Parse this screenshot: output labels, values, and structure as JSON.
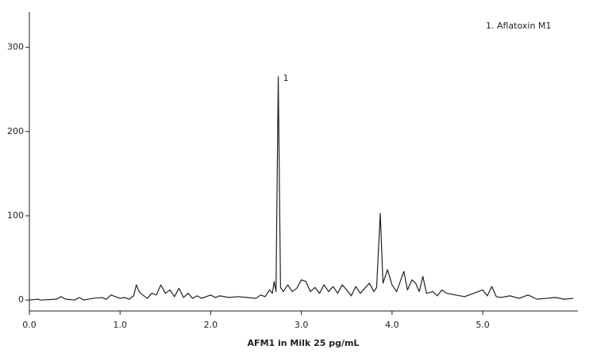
{
  "chart_data": {
    "type": "line",
    "xlabel": "AFM1 in Milk 25 pg/mL",
    "note": "1.  Aflatoxin M1",
    "annotations": [
      {
        "text": "1",
        "x": 2.745,
        "y": 265
      }
    ],
    "x": [
      0.0,
      0.1,
      0.12,
      0.3,
      0.35,
      0.4,
      0.5,
      0.55,
      0.6,
      0.7,
      0.8,
      0.85,
      0.9,
      0.95,
      1.0,
      1.05,
      1.1,
      1.15,
      1.18,
      1.21,
      1.25,
      1.3,
      1.35,
      1.4,
      1.45,
      1.5,
      1.55,
      1.6,
      1.65,
      1.7,
      1.75,
      1.8,
      1.85,
      1.9,
      2.0,
      2.05,
      2.1,
      2.2,
      2.3,
      2.4,
      2.5,
      2.55,
      2.6,
      2.65,
      2.68,
      2.7,
      2.72,
      2.745,
      2.77,
      2.8,
      2.85,
      2.9,
      2.95,
      3.0,
      3.05,
      3.1,
      3.15,
      3.2,
      3.25,
      3.3,
      3.35,
      3.4,
      3.45,
      3.5,
      3.55,
      3.6,
      3.65,
      3.7,
      3.75,
      3.8,
      3.83,
      3.87,
      3.9,
      3.95,
      4.0,
      4.05,
      4.1,
      4.13,
      4.17,
      4.22,
      4.26,
      4.3,
      4.34,
      4.38,
      4.45,
      4.5,
      4.55,
      4.6,
      4.7,
      4.8,
      4.9,
      5.0,
      5.05,
      5.1,
      5.15,
      5.2,
      5.3,
      5.4,
      5.5,
      5.6,
      5.7,
      5.8,
      5.9,
      6.0
    ],
    "series": [
      {
        "color": "#231f20",
        "values": [
          0,
          1,
          0,
          1,
          4,
          1,
          0,
          3,
          0,
          2,
          3,
          1,
          6,
          4,
          2,
          3,
          1,
          5,
          18,
          10,
          6,
          2,
          8,
          6,
          18,
          8,
          12,
          4,
          14,
          3,
          8,
          2,
          5,
          2,
          6,
          3,
          5,
          3,
          4,
          3,
          2,
          6,
          4,
          12,
          8,
          22,
          10,
          265,
          15,
          10,
          18,
          10,
          14,
          24,
          22,
          10,
          15,
          8,
          18,
          10,
          16,
          8,
          18,
          12,
          5,
          16,
          8,
          14,
          20,
          10,
          15,
          103,
          20,
          36,
          18,
          10,
          25,
          34,
          12,
          24,
          20,
          10,
          28,
          8,
          10,
          5,
          12,
          8,
          6,
          4,
          8,
          12,
          5,
          16,
          4,
          3,
          5,
          2,
          6,
          1,
          2,
          3,
          1,
          2
        ]
      }
    ],
    "xlim": [
      0,
      6.05
    ],
    "ylim": [
      -13,
      342
    ],
    "xticks": [
      {
        "value": 0,
        "label": "0.0"
      },
      {
        "value": 1,
        "label": "1.0"
      },
      {
        "value": 2,
        "label": "2.0"
      },
      {
        "value": 3,
        "label": "3.0"
      },
      {
        "value": 4,
        "label": "4.0"
      },
      {
        "value": 5,
        "label": "5.0"
      }
    ],
    "yticks": [
      0,
      100,
      200,
      300
    ]
  }
}
